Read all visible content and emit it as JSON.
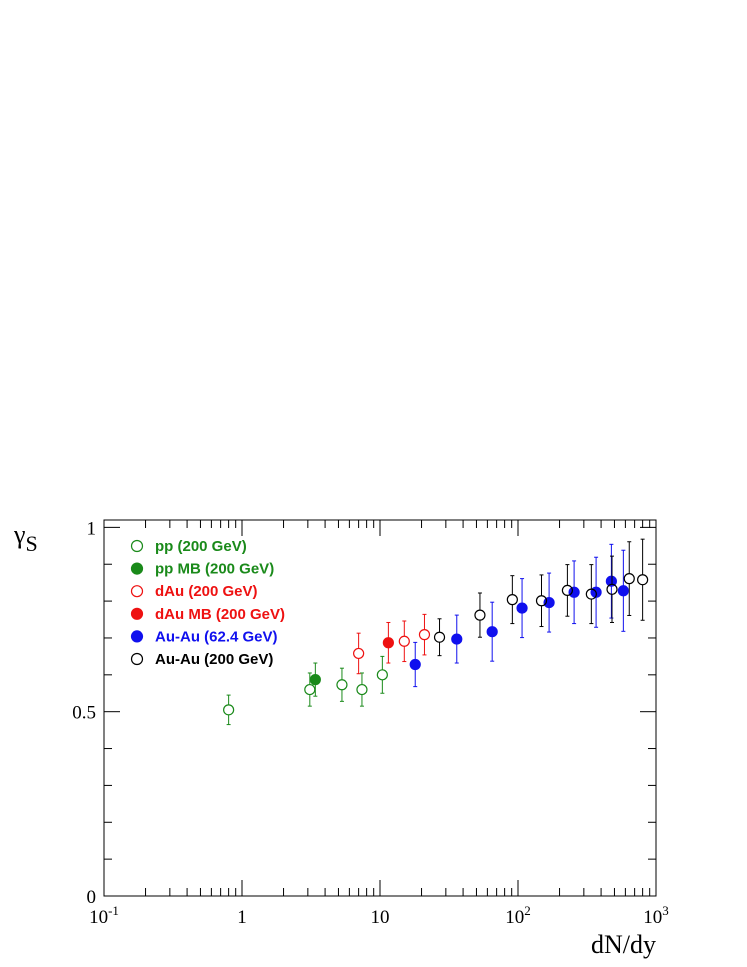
{
  "chart_data": {
    "type": "scatter",
    "xscale": "log",
    "xlim": [
      0.1,
      1000
    ],
    "ylim": [
      0,
      1.02
    ],
    "xlabel": "dN/dy",
    "ylabel": "γ",
    "ylabel_sub": "S",
    "x_ticks": [
      {
        "value": 0.1,
        "base": "10",
        "exp": "-1"
      },
      {
        "value": 1,
        "base": "1",
        "exp": ""
      },
      {
        "value": 10,
        "base": "10",
        "exp": ""
      },
      {
        "value": 100,
        "base": "10",
        "exp": "2"
      },
      {
        "value": 1000,
        "base": "10",
        "exp": "3"
      }
    ],
    "y_ticks": [
      {
        "value": 0,
        "label": "0"
      },
      {
        "value": 0.5,
        "label": "0.5"
      },
      {
        "value": 1,
        "label": "1"
      }
    ],
    "legend_position": "top-left",
    "series": [
      {
        "name": "pp (200 GeV)",
        "color": "#1a8a1a",
        "marker": "open",
        "points": [
          {
            "x": 0.8,
            "y": 0.505,
            "err": 0.04
          },
          {
            "x": 3.1,
            "y": 0.56,
            "err": 0.045
          },
          {
            "x": 5.3,
            "y": 0.573,
            "err": 0.045
          },
          {
            "x": 7.4,
            "y": 0.56,
            "err": 0.045
          },
          {
            "x": 10.4,
            "y": 0.6,
            "err": 0.05
          }
        ]
      },
      {
        "name": "pp MB (200 GeV)",
        "color": "#1a8a1a",
        "marker": "filled",
        "points": [
          {
            "x": 3.4,
            "y": 0.587,
            "err": 0.045
          }
        ]
      },
      {
        "name": "dAu (200 GeV)",
        "color": "#ee1111",
        "marker": "open",
        "points": [
          {
            "x": 7.0,
            "y": 0.658,
            "err": 0.055
          },
          {
            "x": 15.0,
            "y": 0.691,
            "err": 0.055
          },
          {
            "x": 21.0,
            "y": 0.709,
            "err": 0.055
          }
        ]
      },
      {
        "name": "dAu MB (200 GeV)",
        "color": "#ee1111",
        "marker": "filled",
        "points": [
          {
            "x": 11.5,
            "y": 0.687,
            "err": 0.055
          }
        ]
      },
      {
        "name": "Au-Au (62.4 GeV)",
        "color": "#1010ee",
        "marker": "filled",
        "points": [
          {
            "x": 18.0,
            "y": 0.628,
            "err": 0.06
          },
          {
            "x": 36.0,
            "y": 0.697,
            "err": 0.065
          },
          {
            "x": 65.0,
            "y": 0.717,
            "err": 0.08
          },
          {
            "x": 107.0,
            "y": 0.781,
            "err": 0.08
          },
          {
            "x": 168.0,
            "y": 0.796,
            "err": 0.08
          },
          {
            "x": 255.0,
            "y": 0.824,
            "err": 0.085
          },
          {
            "x": 368.0,
            "y": 0.824,
            "err": 0.095
          },
          {
            "x": 475.0,
            "y": 0.854,
            "err": 0.1
          },
          {
            "x": 580.0,
            "y": 0.828,
            "err": 0.11
          }
        ]
      },
      {
        "name": "Au-Au (200 GeV)",
        "color": "#000000",
        "marker": "open",
        "points": [
          {
            "x": 27.0,
            "y": 0.702,
            "err": 0.05
          },
          {
            "x": 53.0,
            "y": 0.762,
            "err": 0.06
          },
          {
            "x": 91.0,
            "y": 0.804,
            "err": 0.065
          },
          {
            "x": 148.0,
            "y": 0.801,
            "err": 0.07
          },
          {
            "x": 228.0,
            "y": 0.829,
            "err": 0.07
          },
          {
            "x": 340.0,
            "y": 0.819,
            "err": 0.08
          },
          {
            "x": 480.0,
            "y": 0.832,
            "err": 0.09
          },
          {
            "x": 640.0,
            "y": 0.861,
            "err": 0.1
          },
          {
            "x": 800.0,
            "y": 0.858,
            "err": 0.11
          }
        ]
      }
    ]
  }
}
